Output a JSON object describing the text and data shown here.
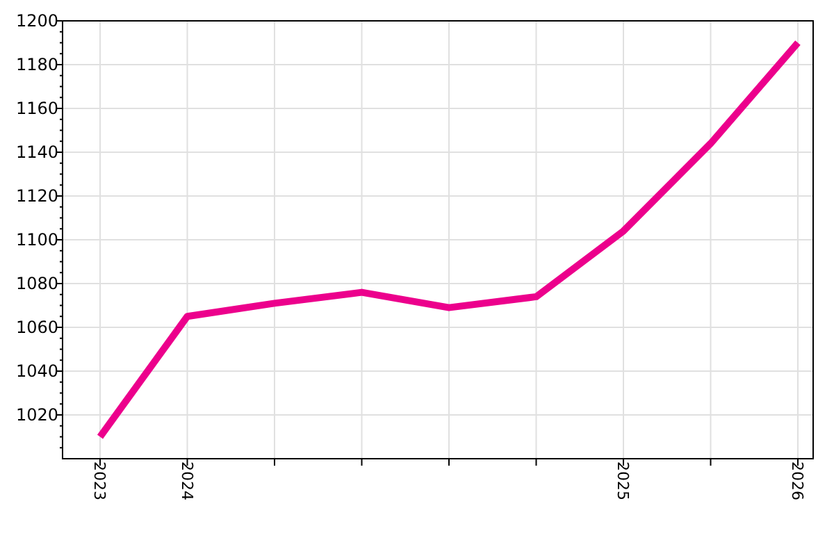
{
  "chart_data": {
    "type": "line",
    "categories": [
      "2023",
      "2024",
      null,
      null,
      null,
      null,
      "2025",
      null,
      "2026"
    ],
    "series": [
      {
        "color": "#ec008c",
        "values": [
          1010,
          1065,
          1071,
          1076,
          1069,
          1074,
          1104,
          1144,
          1190
        ]
      }
    ],
    "ylim": [
      1000,
      1200
    ],
    "yticks": [
      {
        "value": 1005,
        "label": null
      },
      {
        "value": 1010,
        "label": null
      },
      {
        "value": 1015,
        "label": null
      },
      1020,
      {
        "value": 1025,
        "label": null
      },
      {
        "value": 1030,
        "label": null
      },
      {
        "value": 1035,
        "label": null
      },
      1040,
      {
        "value": 1045,
        "label": null
      },
      {
        "value": 1050,
        "label": null
      },
      {
        "value": 1055,
        "label": null
      },
      1060,
      {
        "value": 1065,
        "label": null
      },
      {
        "value": 1070,
        "label": null
      },
      {
        "value": 1075,
        "label": null
      },
      1080,
      {
        "value": 1085,
        "label": null
      },
      {
        "value": 1090,
        "label": null
      },
      {
        "value": 1095,
        "label": null
      },
      1100,
      {
        "value": 1105,
        "label": null
      },
      {
        "value": 1110,
        "label": null
      },
      {
        "value": 1115,
        "label": null
      },
      1120,
      {
        "value": 1125,
        "label": null
      },
      {
        "value": 1130,
        "label": null
      },
      {
        "value": 1135,
        "label": null
      },
      1140,
      {
        "value": 1145,
        "label": null
      },
      {
        "value": 1150,
        "label": null
      },
      {
        "value": 1155,
        "label": null
      },
      1160,
      {
        "value": 1165,
        "label": null
      },
      {
        "value": 1170,
        "label": null
      },
      {
        "value": 1175,
        "label": null
      },
      1180,
      {
        "value": 1185,
        "label": null
      },
      {
        "value": 1190,
        "label": null
      },
      {
        "value": 1195,
        "label": null
      },
      1200
    ],
    "grid": true,
    "marker": "none",
    "line_style": "solid"
  }
}
